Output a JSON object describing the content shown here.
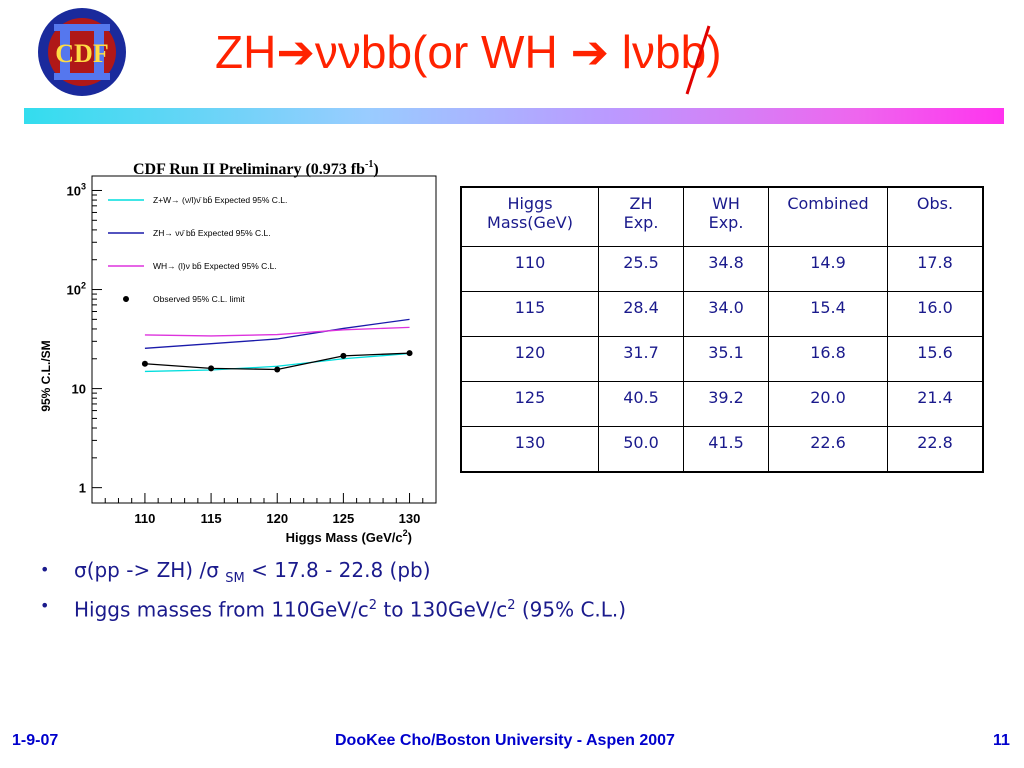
{
  "logo": {
    "text": "CDF",
    "numeral": "II"
  },
  "title": {
    "prefix": "ZH",
    "nu": "νν",
    "mid": "bb(or WH ",
    "l": "l",
    "nu2": "ν",
    "suffix": "bb)"
  },
  "table": {
    "headers": [
      [
        "Higgs",
        "Mass(GeV)"
      ],
      [
        "ZH",
        "Exp."
      ],
      [
        "WH",
        "Exp."
      ],
      [
        "Combined"
      ],
      [
        "Obs."
      ]
    ],
    "rows": [
      [
        "110",
        "25.5",
        "34.8",
        "14.9",
        "17.8"
      ],
      [
        "115",
        "28.4",
        "34.0",
        "15.4",
        "16.0"
      ],
      [
        "120",
        "31.7",
        "35.1",
        "16.8",
        "15.6"
      ],
      [
        "125",
        "40.5",
        "39.2",
        "20.0",
        "21.4"
      ],
      [
        "130",
        "50.0",
        "41.5",
        "22.6",
        "22.8"
      ]
    ]
  },
  "bullets": {
    "b1": {
      "sigma": "σ",
      "a": "(pp -> ZH) /",
      "sigma2": "σ",
      "sub": "SM",
      "b": " < 17.8 - 22.8 (pb)"
    },
    "b2": {
      "a": "Higgs masses from 110GeV/c",
      "sup1": "2",
      "b": " to 130GeV/c",
      "sup2": "2",
      "c": " (95% C.L.)"
    },
    "marker": "•"
  },
  "footer": {
    "left": "1-9-07",
    "center": "DooKee Cho/Boston University - Aspen 2007",
    "right": "11"
  },
  "chart_data": {
    "type": "line",
    "title": "CDF Run II Preliminary (0.973 fb",
    "title_sup": "-1",
    "title_end": ")",
    "xlabel": "Higgs Mass (GeV/c",
    "xlabel_sup": "2",
    "xlabel_end": ")",
    "ylabel": "95% C.L./SM",
    "x": [
      110,
      115,
      120,
      125,
      130
    ],
    "xlim": [
      106,
      132
    ],
    "ylim": [
      0.7,
      1400
    ],
    "yscale": "log",
    "xticks": [
      "110",
      "115",
      "120",
      "125",
      "130"
    ],
    "yticks": [
      {
        "v": 1,
        "label": "1",
        "sup": ""
      },
      {
        "v": 10,
        "label": "10",
        "sup": ""
      },
      {
        "v": 100,
        "label": "10",
        "sup": "2"
      },
      {
        "v": 1000,
        "label": "10",
        "sup": "3"
      }
    ],
    "series": [
      {
        "name": "Z+W→ (ν/l)ν̄ bb̄ Expected 95% C.L.",
        "color": "#00dddd",
        "marker": "line",
        "values": [
          14.9,
          15.4,
          16.8,
          20.0,
          22.6
        ]
      },
      {
        "name": "ZH→ νν̄ bb̄ Expected 95% C.L.",
        "color": "#1a1aaa",
        "marker": "line",
        "values": [
          25.5,
          28.4,
          31.7,
          40.5,
          50.0
        ]
      },
      {
        "name": "WH→ (l)ν bb̄ Expected 95% C.L.",
        "color": "#dd33dd",
        "marker": "line",
        "values": [
          34.8,
          34.0,
          35.1,
          39.2,
          41.5
        ]
      },
      {
        "name": "Observed 95% C.L. limit",
        "color": "#000000",
        "marker": "dot",
        "values": [
          17.8,
          16.0,
          15.6,
          21.4,
          22.8
        ]
      }
    ],
    "legend_position": "top-left"
  }
}
